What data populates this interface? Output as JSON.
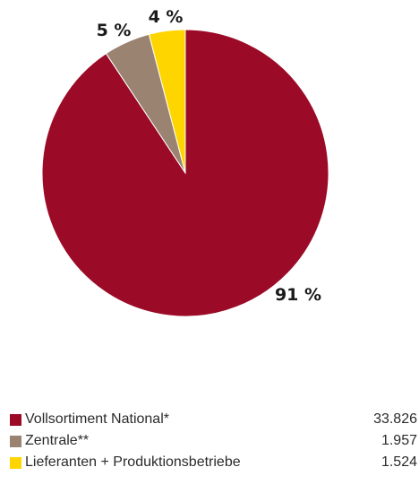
{
  "chart_data": {
    "type": "pie",
    "categories": [
      "Vollsortiment National*",
      "Zentrale**",
      "Lieferanten + Produktionsbetriebe"
    ],
    "values": [
      33826,
      1957,
      1524
    ],
    "value_labels": [
      "33.826",
      "1.957",
      "1.524"
    ],
    "percent_labels": [
      "91 %",
      "5 %",
      "4 %"
    ],
    "colors": [
      "#9b0a26",
      "#9b8372",
      "#ffd500"
    ],
    "legend_position": "bottom"
  }
}
